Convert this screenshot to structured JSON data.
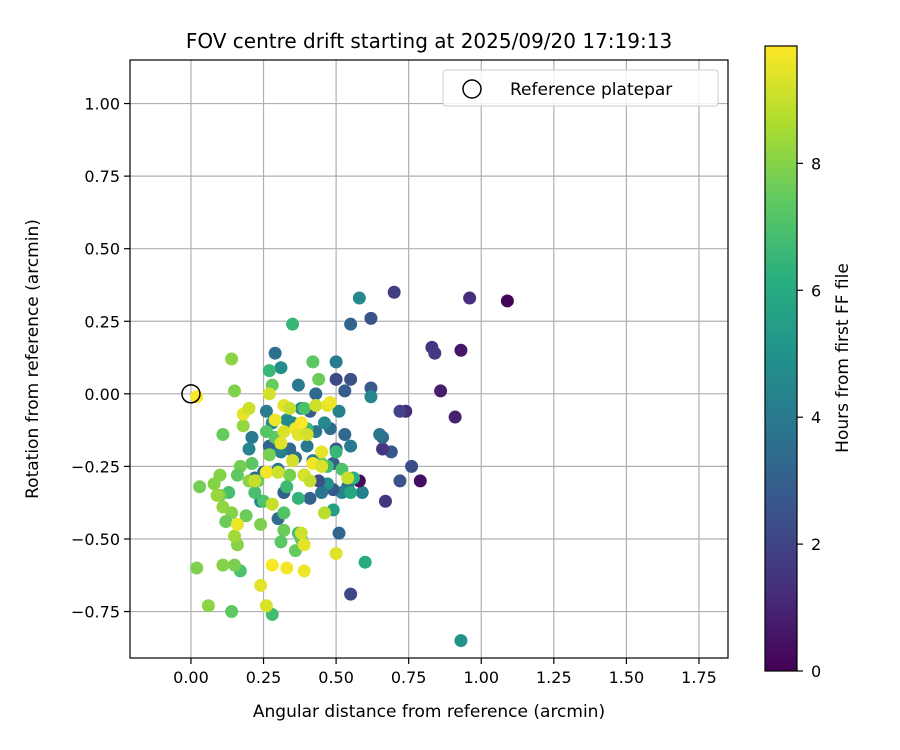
{
  "chart_data": {
    "type": "scatter",
    "title": "FOV centre drift starting at 2025/09/20 17:19:13",
    "xlabel": "Angular distance from reference (arcmin)",
    "ylabel": "Rotation from reference (arcmin)",
    "xlim": [
      -0.21,
      1.85
    ],
    "ylim": [
      -0.91,
      1.15
    ],
    "x_ticks": [
      0.0,
      0.25,
      0.5,
      0.75,
      1.0,
      1.25,
      1.5,
      1.75
    ],
    "x_tick_labels": [
      "0.00",
      "0.25",
      "0.50",
      "0.75",
      "1.00",
      "1.25",
      "1.50",
      "1.75"
    ],
    "y_ticks": [
      -0.75,
      -0.5,
      -0.25,
      0.0,
      0.25,
      0.5,
      0.75,
      1.0
    ],
    "y_tick_labels": [
      "−0.75",
      "−0.50",
      "−0.25",
      "0.00",
      "0.25",
      "0.50",
      "0.75",
      "1.00"
    ],
    "grid": true,
    "legend": {
      "position": "top-right",
      "entries": [
        "Reference platepar"
      ]
    },
    "reference_point": {
      "x": 0.0,
      "y": 0.0,
      "label": "Reference platepar"
    },
    "colorbar": {
      "label": "Hours from first FF file",
      "colormap": "viridis",
      "range": [
        0,
        9.85
      ],
      "ticks": [
        0,
        2,
        4,
        6,
        8
      ],
      "tick_labels": [
        "0",
        "2",
        "4",
        "6",
        "8"
      ]
    },
    "series": [
      {
        "name": "FOV centre",
        "points": [
          [
            1.09,
            0.32,
            0.1
          ],
          [
            0.96,
            0.33,
            1.3
          ],
          [
            0.93,
            0.15,
            0.6
          ],
          [
            0.91,
            -0.08,
            0.9
          ],
          [
            0.86,
            0.01,
            0.8
          ],
          [
            0.83,
            0.16,
            1.5
          ],
          [
            0.84,
            0.14,
            1.7
          ],
          [
            0.79,
            -0.3,
            0.4
          ],
          [
            0.76,
            -0.25,
            2.3
          ],
          [
            0.74,
            -0.06,
            1.2
          ],
          [
            0.72,
            -0.06,
            2.0
          ],
          [
            0.72,
            -0.3,
            2.5
          ],
          [
            0.7,
            0.35,
            1.8
          ],
          [
            0.69,
            -0.2,
            2.7
          ],
          [
            0.67,
            -0.37,
            1.6
          ],
          [
            0.66,
            -0.19,
            1.5
          ],
          [
            0.66,
            -0.15,
            3.4
          ],
          [
            0.65,
            -0.14,
            3.8
          ],
          [
            0.62,
            0.26,
            2.5
          ],
          [
            0.62,
            0.02,
            2.8
          ],
          [
            0.62,
            -0.01,
            4.5
          ],
          [
            0.59,
            -0.34,
            4.2
          ],
          [
            0.58,
            0.33,
            4.7
          ],
          [
            0.58,
            -0.3,
            0.3
          ],
          [
            0.55,
            0.24,
            3.2
          ],
          [
            0.55,
            0.05,
            2.4
          ],
          [
            0.55,
            -0.69,
            2.1
          ],
          [
            0.55,
            -0.18,
            4.0
          ],
          [
            0.54,
            -0.32,
            3.6
          ],
          [
            0.53,
            -0.14,
            3.3
          ],
          [
            0.53,
            0.01,
            2.9
          ],
          [
            0.52,
            -0.34,
            4.4
          ],
          [
            0.51,
            -0.06,
            4.3
          ],
          [
            0.51,
            -0.48,
            3.2
          ],
          [
            0.5,
            0.11,
            4.1
          ],
          [
            0.5,
            0.05,
            2.2
          ],
          [
            0.5,
            -0.19,
            2.6
          ],
          [
            0.49,
            -0.24,
            3.0
          ],
          [
            0.49,
            -0.33,
            2.7
          ],
          [
            0.48,
            -0.12,
            3.5
          ],
          [
            0.47,
            -0.31,
            5.0
          ],
          [
            0.46,
            -0.1,
            4.6
          ],
          [
            0.45,
            -0.34,
            3.8
          ],
          [
            0.44,
            -0.3,
            2.4
          ],
          [
            0.43,
            -0.13,
            3.9
          ],
          [
            0.43,
            0.0,
            3.3
          ],
          [
            0.42,
            -0.23,
            4.2
          ],
          [
            0.41,
            -0.36,
            3.1
          ],
          [
            0.41,
            -0.06,
            2.9
          ],
          [
            0.4,
            -0.18,
            4.0
          ],
          [
            0.39,
            -0.28,
            3.7
          ],
          [
            0.38,
            -0.05,
            4.5
          ],
          [
            0.37,
            0.03,
            4.0
          ],
          [
            0.36,
            -0.22,
            3.6
          ],
          [
            0.35,
            -0.1,
            4.8
          ],
          [
            0.34,
            -0.19,
            3.4
          ],
          [
            0.33,
            -0.09,
            4.6
          ],
          [
            0.32,
            -0.34,
            3.0
          ],
          [
            0.31,
            -0.2,
            4.3
          ],
          [
            0.31,
            0.09,
            4.9
          ],
          [
            0.3,
            -0.26,
            3.9
          ],
          [
            0.3,
            -0.43,
            3.5
          ],
          [
            0.29,
            0.14,
            3.6
          ],
          [
            0.28,
            -0.1,
            4.4
          ],
          [
            0.27,
            -0.18,
            3.2
          ],
          [
            0.26,
            -0.06,
            4.1
          ],
          [
            0.25,
            -0.27,
            3.7
          ],
          [
            0.24,
            -0.37,
            4.6
          ],
          [
            0.22,
            -0.29,
            3.4
          ],
          [
            0.21,
            -0.15,
            4.0
          ],
          [
            0.2,
            -0.19,
            4.5
          ],
          [
            0.93,
            -0.85,
            5.0
          ],
          [
            0.6,
            -0.58,
            6.0
          ],
          [
            0.49,
            -0.4,
            5.5
          ],
          [
            0.55,
            -0.34,
            5.8
          ],
          [
            0.56,
            -0.29,
            6.2
          ],
          [
            0.52,
            -0.26,
            7.0
          ],
          [
            0.5,
            -0.2,
            6.5
          ],
          [
            0.47,
            -0.25,
            6.8
          ],
          [
            0.45,
            -0.24,
            7.4
          ],
          [
            0.44,
            0.05,
            7.6
          ],
          [
            0.42,
            0.11,
            7.3
          ],
          [
            0.4,
            -0.12,
            6.6
          ],
          [
            0.39,
            -0.05,
            7.0
          ],
          [
            0.38,
            -0.5,
            7.2
          ],
          [
            0.37,
            -0.36,
            6.4
          ],
          [
            0.37,
            -0.48,
            6.9
          ],
          [
            0.36,
            -0.54,
            7.5
          ],
          [
            0.35,
            0.24,
            6.5
          ],
          [
            0.34,
            -0.28,
            7.8
          ],
          [
            0.33,
            -0.32,
            6.7
          ],
          [
            0.32,
            -0.41,
            7.1
          ],
          [
            0.32,
            -0.47,
            7.6
          ],
          [
            0.31,
            -0.51,
            7.3
          ],
          [
            0.3,
            -0.27,
            6.9
          ],
          [
            0.29,
            -0.15,
            7.4
          ],
          [
            0.28,
            -0.76,
            6.8
          ],
          [
            0.28,
            0.03,
            7.5
          ],
          [
            0.27,
            -0.21,
            7.8
          ],
          [
            0.27,
            0.08,
            6.6
          ],
          [
            0.26,
            -0.13,
            7.2
          ],
          [
            0.25,
            -0.37,
            7.0
          ],
          [
            0.24,
            -0.45,
            7.9
          ],
          [
            0.23,
            -0.3,
            7.5
          ],
          [
            0.22,
            -0.34,
            6.9
          ],
          [
            0.21,
            -0.24,
            7.3
          ],
          [
            0.2,
            -0.3,
            8.1
          ],
          [
            0.19,
            -0.42,
            7.6
          ],
          [
            0.18,
            -0.11,
            8.2
          ],
          [
            0.17,
            -0.25,
            7.7
          ],
          [
            0.17,
            -0.61,
            7.0
          ],
          [
            0.16,
            -0.28,
            7.4
          ],
          [
            0.16,
            -0.52,
            8.0
          ],
          [
            0.15,
            -0.59,
            7.8
          ],
          [
            0.15,
            0.01,
            7.9
          ],
          [
            0.14,
            -0.41,
            8.0
          ],
          [
            0.14,
            -0.75,
            7.4
          ],
          [
            0.14,
            0.12,
            8.1
          ],
          [
            0.13,
            -0.34,
            6.9
          ],
          [
            0.12,
            -0.44,
            7.6
          ],
          [
            0.11,
            -0.14,
            7.5
          ],
          [
            0.11,
            -0.59,
            8.0
          ],
          [
            0.11,
            -0.39,
            8.2
          ],
          [
            0.1,
            -0.35,
            7.8
          ],
          [
            0.1,
            -0.28,
            8.0
          ],
          [
            0.09,
            -0.35,
            8.3
          ],
          [
            0.08,
            -0.31,
            8.0
          ],
          [
            0.06,
            -0.73,
            8.1
          ],
          [
            0.03,
            -0.32,
            7.7
          ],
          [
            0.02,
            -0.6,
            7.9
          ],
          [
            0.15,
            -0.49,
            8.4
          ],
          [
            0.16,
            -0.45,
            9.6
          ],
          [
            0.18,
            -0.07,
            9.5
          ],
          [
            0.2,
            -0.05,
            9.1
          ],
          [
            0.22,
            -0.3,
            9.0
          ],
          [
            0.24,
            -0.66,
            9.4
          ],
          [
            0.26,
            -0.73,
            9.3
          ],
          [
            0.26,
            -0.27,
            9.7
          ],
          [
            0.27,
            0.0,
            9.2
          ],
          [
            0.28,
            -0.59,
            9.8
          ],
          [
            0.28,
            -0.38,
            9.0
          ],
          [
            0.29,
            -0.09,
            9.6
          ],
          [
            0.3,
            -0.27,
            9.1
          ],
          [
            0.31,
            -0.17,
            9.4
          ],
          [
            0.32,
            -0.04,
            9.5
          ],
          [
            0.32,
            -0.13,
            9.3
          ],
          [
            0.33,
            -0.6,
            9.7
          ],
          [
            0.34,
            -0.05,
            9.0
          ],
          [
            0.35,
            -0.23,
            9.2
          ],
          [
            0.36,
            -0.12,
            9.6
          ],
          [
            0.37,
            -0.14,
            9.4
          ],
          [
            0.38,
            -0.1,
            9.8
          ],
          [
            0.38,
            -0.48,
            9.1
          ],
          [
            0.39,
            -0.52,
            9.5
          ],
          [
            0.39,
            -0.28,
            9.3
          ],
          [
            0.39,
            -0.61,
            9.6
          ],
          [
            0.4,
            -0.14,
            9.2
          ],
          [
            0.41,
            -0.3,
            9.0
          ],
          [
            0.42,
            -0.24,
            9.7
          ],
          [
            0.43,
            -0.04,
            9.1
          ],
          [
            0.45,
            -0.2,
            9.5
          ],
          [
            0.45,
            -0.25,
            9.3
          ],
          [
            0.46,
            -0.41,
            8.8
          ],
          [
            0.47,
            -0.04,
            9.4
          ],
          [
            0.48,
            -0.03,
            9.6
          ],
          [
            0.5,
            -0.55,
            9.4
          ],
          [
            0.54,
            -0.29,
            9.0
          ],
          [
            0.02,
            -0.01,
            9.8
          ]
        ]
      }
    ]
  }
}
